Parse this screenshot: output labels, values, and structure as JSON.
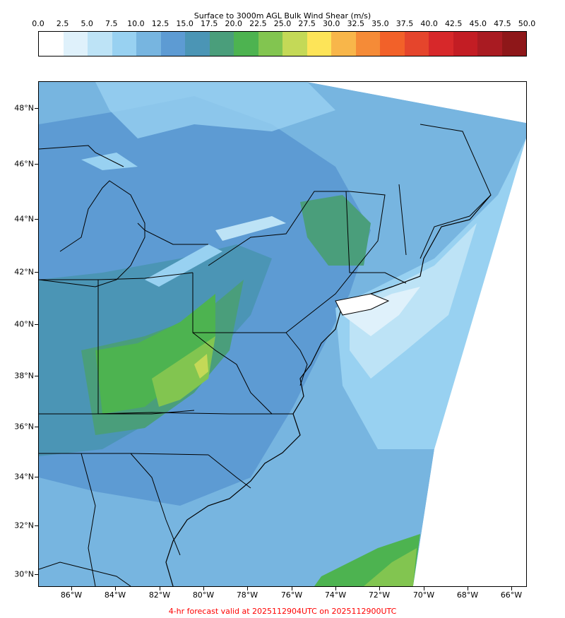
{
  "colorbar": {
    "title": "Surface to 3000m AGL Bulk Wind Shear (m/s)",
    "ticks": [
      "0.0",
      "2.5",
      "5.0",
      "7.5",
      "10.0",
      "12.5",
      "15.0",
      "17.5",
      "20.0",
      "22.5",
      "25.0",
      "27.5",
      "30.0",
      "32.5",
      "35.0",
      "37.5",
      "40.0",
      "42.5",
      "45.0",
      "47.5",
      "50.0"
    ],
    "colors": [
      "#ffffff",
      "#dff1fb",
      "#bde3f6",
      "#98d1f1",
      "#77b5e0",
      "#5d9bd3",
      "#4b95b5",
      "#4a9e7b",
      "#4db350",
      "#82c550",
      "#c4d957",
      "#fde458",
      "#f8b64a",
      "#f58b37",
      "#f26129",
      "#e5452c",
      "#d7282a",
      "#c31d24",
      "#a91b22",
      "#8e1719"
    ]
  },
  "map": {
    "lat_labels": [
      "48°N",
      "46°N",
      "44°N",
      "42°N",
      "40°N",
      "38°N",
      "36°N",
      "34°N",
      "32°N",
      "30°N"
    ],
    "lon_labels": [
      "86°W",
      "84°W",
      "82°W",
      "80°W",
      "78°W",
      "76°W",
      "74°W",
      "72°W",
      "70°W",
      "68°W",
      "66°W"
    ],
    "field_variable": "bulk_wind_shear_0_3km",
    "units": "m/s"
  },
  "footer": "4-hr forecast valid at 2025112904UTC on 2025112900UTC"
}
